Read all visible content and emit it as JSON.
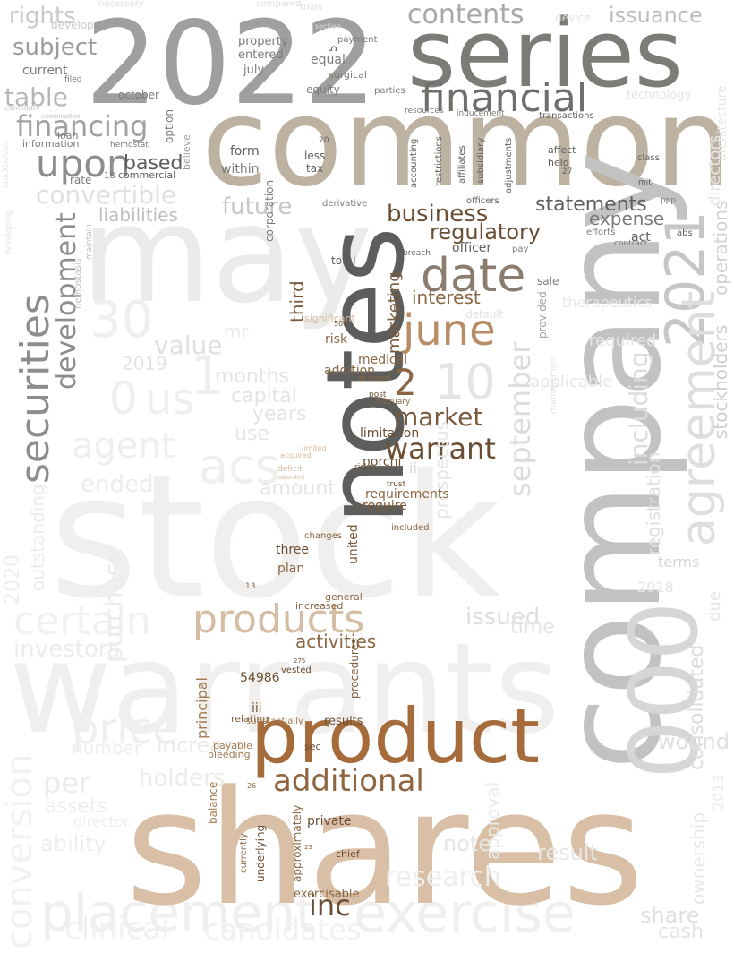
{
  "words": [
    {
      "text": "stock",
      "color": "#f0efed"
    },
    {
      "text": "warrants",
      "color": "#f0efed"
    },
    {
      "text": "may",
      "color": "#ebebea"
    },
    {
      "text": "price",
      "color": "#f0efed"
    },
    {
      "text": "exercise",
      "color": "#f0efed"
    },
    {
      "text": "placement",
      "color": "#f0efed"
    },
    {
      "text": "conversion",
      "color": "#f2f1ef"
    },
    {
      "text": "clinical",
      "color": "#f2f1ef"
    },
    {
      "text": "candidates",
      "color": "#f2f1ef"
    },
    {
      "text": "certain",
      "color": "#f2f1ef"
    },
    {
      "text": "acs",
      "color": "#f0efed"
    },
    {
      "text": "30",
      "color": "#f0efed"
    },
    {
      "text": "0",
      "color": "#f0efed"
    },
    {
      "text": "1",
      "color": "#f0efed"
    },
    {
      "text": "us",
      "color": "#f0efed"
    },
    {
      "text": "agent",
      "color": "#f0efed"
    },
    {
      "text": "2022",
      "color": "#9f9f9d"
    },
    {
      "text": "series",
      "color": "#7b7b78"
    },
    {
      "text": "common",
      "color": "#bdb1a2"
    },
    {
      "text": "company",
      "color": "#c2c2c0"
    },
    {
      "text": "notes",
      "color": "#5d5d5b"
    },
    {
      "text": "shares",
      "color": "#d8bfa6"
    },
    {
      "text": "product",
      "color": "#a56b3a"
    },
    {
      "text": "products",
      "color": "#d5bca2"
    },
    {
      "text": "000",
      "color": "#d6d6d4"
    },
    {
      "text": "2021",
      "color": "#c6c6c4"
    },
    {
      "text": "agreement",
      "color": "#dedede"
    },
    {
      "text": "securities",
      "color": "#8d8d8b"
    },
    {
      "text": "development",
      "color": "#8d8d8b"
    },
    {
      "text": "financing",
      "color": "#a0a09d"
    },
    {
      "text": "convertible",
      "color": "#e0e0de"
    },
    {
      "text": "financial",
      "color": "#6e6e6b"
    },
    {
      "text": "date",
      "color": "#8a7d6f"
    },
    {
      "text": "june",
      "color": "#b88d64"
    },
    {
      "text": "upon",
      "color": "#8d8d8b"
    },
    {
      "text": "subject",
      "color": "#9c9c99"
    },
    {
      "text": "table",
      "color": "#b7b7b5"
    },
    {
      "text": "contents",
      "color": "#a8a8a6"
    },
    {
      "text": "rights",
      "color": "#cacac8"
    },
    {
      "text": "business",
      "color": "#6b4e33"
    },
    {
      "text": "regulatory",
      "color": "#6b4e33"
    },
    {
      "text": "statements",
      "color": "#5e5e5c"
    },
    {
      "text": "market",
      "color": "#7a5a3c"
    },
    {
      "text": "warrant",
      "color": "#6b4e33"
    },
    {
      "text": "additional",
      "color": "#8f6440"
    },
    {
      "text": "inc",
      "color": "#6b4e33"
    },
    {
      "text": "10",
      "color": "#e4e4e2"
    },
    {
      "text": "2",
      "color": "#8a6642"
    },
    {
      "text": "september",
      "color": "#dcdcda"
    },
    {
      "text": "issuance",
      "color": "#bebebc"
    },
    {
      "text": "stockholders",
      "color": "#cfcfcd"
    },
    {
      "text": "operations",
      "color": "#d3d3d1"
    },
    {
      "text": "consolidated",
      "color": "#dcdcda"
    },
    {
      "text": "including",
      "color": "#dcdcda"
    },
    {
      "text": "registration",
      "color": "#dedede"
    },
    {
      "text": "activities",
      "color": "#8a6642"
    },
    {
      "text": "interest",
      "color": "#8a6642"
    },
    {
      "text": "based",
      "color": "#5e5e5c"
    },
    {
      "text": "marketing",
      "color": "#7a5a3c"
    },
    {
      "text": "third",
      "color": "#7a5a3c"
    },
    {
      "text": "expense",
      "color": "#7a7a77"
    },
    {
      "text": "issued",
      "color": "#dedede"
    },
    {
      "text": "prospectus",
      "color": "#e6e6e4"
    },
    {
      "text": "liabilities",
      "color": "#bfbfbd"
    },
    {
      "text": "future",
      "color": "#c6c6c4"
    },
    {
      "text": "value",
      "color": "#e0e0de"
    },
    {
      "text": "months",
      "color": "#e4e4e2"
    },
    {
      "text": "capital",
      "color": "#e4e4e2"
    },
    {
      "text": "years",
      "color": "#e4e4e2"
    },
    {
      "text": "use",
      "color": "#e6e6e4"
    },
    {
      "text": "amount",
      "color": "#e4e4e2"
    },
    {
      "text": "ended",
      "color": "#ececea"
    },
    {
      "text": "purchase",
      "color": "#ececea"
    },
    {
      "text": "outstanding",
      "color": "#ececea"
    },
    {
      "text": "2020",
      "color": "#eeeeec"
    },
    {
      "text": "2019",
      "color": "#e4e4e2"
    },
    {
      "text": "investors",
      "color": "#ececea"
    },
    {
      "text": "per",
      "color": "#ececea"
    },
    {
      "text": "holders",
      "color": "#ececea"
    },
    {
      "text": "increase",
      "color": "#ececea"
    },
    {
      "text": "number",
      "color": "#eeeeec"
    },
    {
      "text": "ability",
      "color": "#eeeeec"
    },
    {
      "text": "assets",
      "color": "#eeeeec"
    },
    {
      "text": "director",
      "color": "#eeeeec"
    },
    {
      "text": "research",
      "color": "#eeeeec"
    },
    {
      "text": "note",
      "color": "#e6e6e4"
    },
    {
      "text": "result",
      "color": "#e6e6e4"
    },
    {
      "text": "time",
      "color": "#e4e4e2"
    },
    {
      "text": "wound",
      "color": "#e0e0de"
    },
    {
      "text": "share",
      "color": "#e0e0de"
    },
    {
      "text": "cash",
      "color": "#e4e4e2"
    },
    {
      "text": "ownership",
      "color": "#e8e8e6"
    },
    {
      "text": "approval",
      "color": "#ececea"
    },
    {
      "text": "2013",
      "color": "#ececea"
    },
    {
      "text": "required",
      "color": "#e6e6e4"
    },
    {
      "text": "applicable",
      "color": "#e6e6e4"
    },
    {
      "text": "therapeutics",
      "color": "#e8e8e6"
    },
    {
      "text": "terms",
      "color": "#d6d6d4"
    },
    {
      "text": "2018",
      "color": "#e4e4e2"
    },
    {
      "text": "due",
      "color": "#e4e4e2"
    },
    {
      "text": "directors",
      "color": "#e6e6e4"
    },
    {
      "text": "act",
      "color": "#5e5e5c"
    },
    {
      "text": "sale",
      "color": "#7a7a77"
    },
    {
      "text": "provided",
      "color": "#a0a09d"
    },
    {
      "text": "officer",
      "color": "#5e5e5c"
    },
    {
      "text": "limitation",
      "color": "#6b4e33"
    },
    {
      "text": "norchi",
      "color": "#6b4e33"
    },
    {
      "text": "medical",
      "color": "#8a6642"
    },
    {
      "text": "risk",
      "color": "#8a6642"
    },
    {
      "text": "addition",
      "color": "#8a6642"
    },
    {
      "text": "significant",
      "color": "#d5bca2"
    },
    {
      "text": "requirements",
      "color": "#8a6642"
    },
    {
      "text": "require",
      "color": "#7a5a3c"
    },
    {
      "text": "united",
      "color": "#7a5a3c"
    },
    {
      "text": "three",
      "color": "#6b4e33"
    },
    {
      "text": "plan",
      "color": "#8a6642"
    },
    {
      "text": "principal",
      "color": "#a07a50"
    },
    {
      "text": "54986",
      "color": "#6b4e33"
    },
    {
      "text": "iii",
      "color": "#7a5a3c"
    },
    {
      "text": "procedures",
      "color": "#7a5a3c"
    },
    {
      "text": "results",
      "color": "#6b4e33"
    },
    {
      "text": "private",
      "color": "#6b4e33"
    },
    {
      "text": "approximately",
      "color": "#8a6642"
    },
    {
      "text": "underlying",
      "color": "#6b4e33"
    },
    {
      "text": "exercisable",
      "color": "#8a6642"
    },
    {
      "text": "chief",
      "color": "#6b4e33"
    },
    {
      "text": "currently",
      "color": "#8a6642"
    },
    {
      "text": "balance",
      "color": "#a07a50"
    },
    {
      "text": "payable",
      "color": "#a07a50"
    },
    {
      "text": "bleeding",
      "color": "#a07a50"
    },
    {
      "text": "sec",
      "color": "#6b4e33"
    },
    {
      "text": "relating",
      "color": "#8a6642"
    },
    {
      "text": "substantially",
      "color": "#a07a50"
    },
    {
      "text": "vested",
      "color": "#6b4e33"
    },
    {
      "text": "increased",
      "color": "#8a6642"
    },
    {
      "text": "general",
      "color": "#8a6642"
    },
    {
      "text": "included",
      "color": "#8a6642"
    },
    {
      "text": "changes",
      "color": "#8a6642"
    },
    {
      "text": "total",
      "color": "#5e5e5c"
    },
    {
      "text": "mr",
      "color": "#ececea"
    },
    {
      "text": "form",
      "color": "#5e5e5c"
    },
    {
      "text": "within",
      "color": "#7a7a77"
    },
    {
      "text": "corporation",
      "color": "#7a7a77"
    },
    {
      "text": "less",
      "color": "#5e5e5c"
    },
    {
      "text": "tax",
      "color": "#5e5e5c"
    },
    {
      "text": "equal",
      "color": "#7a7a77"
    },
    {
      "text": "equity",
      "color": "#7a7a77"
    },
    {
      "text": "property",
      "color": "#7a7a77"
    },
    {
      "text": "entered",
      "color": "#7a7a77"
    },
    {
      "text": "july",
      "color": "#7a7a77"
    },
    {
      "text": "surgical",
      "color": "#7a7a77"
    },
    {
      "text": "october",
      "color": "#7a7a77"
    },
    {
      "text": "option",
      "color": "#7a7a77"
    },
    {
      "text": "believe",
      "color": "#a0a09d"
    },
    {
      "text": "commercial",
      "color": "#5e5e5c"
    },
    {
      "text": "current",
      "color": "#7a7a77"
    },
    {
      "text": "loan",
      "color": "#7a7a77"
    },
    {
      "text": "information",
      "color": "#7a7a77"
    },
    {
      "text": "rate",
      "color": "#7a7a77"
    },
    {
      "text": "parties",
      "color": "#7a7a77"
    },
    {
      "text": "payment",
      "color": "#7a7a77"
    },
    {
      "text": "accounting",
      "color": "#5e5e5c"
    },
    {
      "text": "restrictions",
      "color": "#5e5e5c"
    },
    {
      "text": "subsidiary",
      "color": "#5e5e5c"
    },
    {
      "text": "affiliates",
      "color": "#5e5e5c"
    },
    {
      "text": "adjustments",
      "color": "#5e5e5c"
    },
    {
      "text": "affect",
      "color": "#5e5e5c"
    },
    {
      "text": "held",
      "color": "#5e5e5c"
    },
    {
      "text": "class",
      "color": "#5e5e5c"
    },
    {
      "text": "mit",
      "color": "#5e5e5c"
    },
    {
      "text": "abs",
      "color": "#5e5e5c"
    },
    {
      "text": "transactions",
      "color": "#5e5e5c"
    },
    {
      "text": "resources",
      "color": "#7a7a77"
    },
    {
      "text": "inducement",
      "color": "#7a7a77"
    },
    {
      "text": "derivative",
      "color": "#7a7a77"
    },
    {
      "text": "breach",
      "color": "#5e5e5c"
    },
    {
      "text": "pay",
      "color": "#7a7a77"
    },
    {
      "text": "officers",
      "color": "#5e5e5c"
    },
    {
      "text": "default",
      "color": "#e0e0de"
    },
    {
      "text": "efforts",
      "color": "#7a7a77"
    },
    {
      "text": "contract",
      "color": "#7a7a77"
    },
    {
      "text": "ppp",
      "color": "#7a7a77"
    },
    {
      "text": "develop",
      "color": "#cacac8"
    },
    {
      "text": "necessary",
      "color": "#dedede"
    },
    {
      "text": "compared",
      "color": "#dedede"
    },
    {
      "text": "trials",
      "color": "#dedede"
    },
    {
      "text": "section",
      "color": "#dedede"
    },
    {
      "text": "device",
      "color": "#dedede"
    },
    {
      "text": "technology",
      "color": "#e4e4e2"
    },
    {
      "text": "architecture",
      "color": "#e6e6e4"
    },
    {
      "text": "stockholder",
      "color": "#e4e4e2"
    },
    {
      "text": "developing",
      "color": "#e4e4e2"
    },
    {
      "text": "hemostasis",
      "color": "#bfbfbd"
    },
    {
      "text": "maintain",
      "color": "#bfbfbd"
    },
    {
      "text": "hemostat",
      "color": "#7a7a77"
    },
    {
      "text": "filed",
      "color": "#7a7a77"
    },
    {
      "text": "candidate",
      "color": "#cacac8"
    },
    {
      "text": "combination",
      "color": "#bfbfbd"
    },
    {
      "text": "management",
      "color": "#e6e6e4"
    },
    {
      "text": "post",
      "color": "#6b4e33"
    },
    {
      "text": "february",
      "color": "#8a6642"
    },
    {
      "text": "accrued",
      "color": "#8a6642"
    },
    {
      "text": "trust",
      "color": "#6b4e33"
    },
    {
      "text": "ii",
      "color": "#d6d6d4"
    },
    {
      "text": "risks",
      "color": "#6b4e33"
    },
    {
      "text": "deficit",
      "color": "#d5bca2"
    },
    {
      "text": "limited",
      "color": "#d5bca2"
    },
    {
      "text": "acquired",
      "color": "#d5bca2"
    },
    {
      "text": "awarded",
      "color": "#d5bca2"
    },
    {
      "text": "18",
      "color": "#7a7a77"
    },
    {
      "text": "5",
      "color": "#5e5e5c"
    },
    {
      "text": "20",
      "color": "#5e5e5c"
    },
    {
      "text": "27",
      "color": "#5e5e5c"
    },
    {
      "text": "500",
      "color": "#6b4e33"
    },
    {
      "text": "13",
      "color": "#8a6642"
    },
    {
      "text": "26",
      "color": "#8a6642"
    },
    {
      "text": "23",
      "color": "#8a6642"
    },
    {
      "text": "275",
      "color": "#6b4e33"
    }
  ]
}
